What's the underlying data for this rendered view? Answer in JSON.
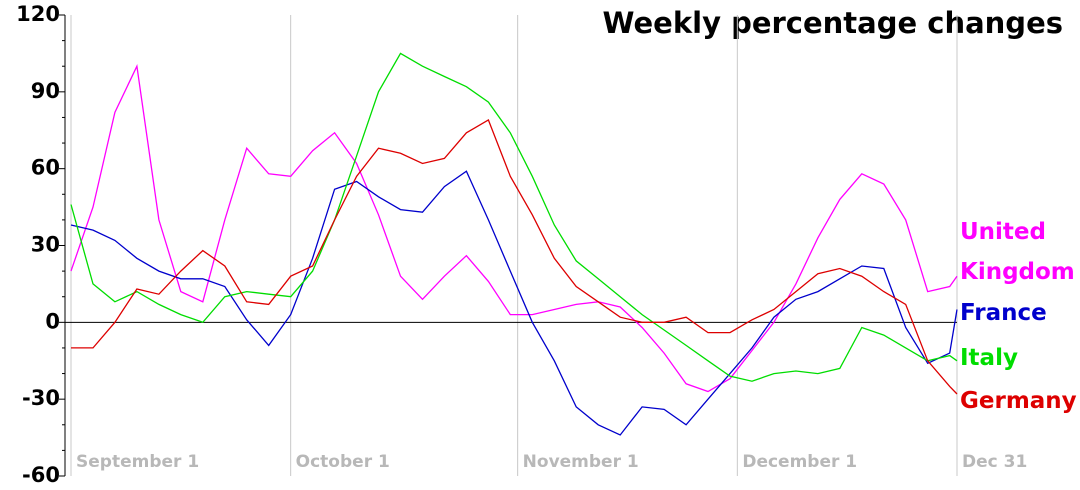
{
  "chart_data": {
    "type": "line",
    "title": "Weekly percentage changes",
    "x": [
      "September 1",
      "September 4",
      "September 7",
      "September 10",
      "September 13",
      "September 16",
      "September 19",
      "September 22",
      "September 25",
      "September 28",
      "October 1",
      "October 4",
      "October 7",
      "October 10",
      "October 13",
      "October 16",
      "October 19",
      "October 22",
      "October 25",
      "October 28",
      "October 31",
      "November 3",
      "November 6",
      "November 9",
      "November 12",
      "November 15",
      "November 18",
      "November 21",
      "November 24",
      "November 27",
      "November 30",
      "December 3",
      "December 6",
      "December 9",
      "December 12",
      "December 15",
      "December 18",
      "December 21",
      "December 24",
      "December 27",
      "December 30",
      "December 31"
    ],
    "series": [
      {
        "name": "United Kingdom",
        "color": "#ff00ff",
        "values": [
          20,
          45,
          82,
          100,
          40,
          12,
          8,
          40,
          68,
          58,
          57,
          67,
          74,
          62,
          42,
          18,
          9,
          18,
          26,
          16,
          3,
          3,
          5,
          7,
          8,
          6,
          -2,
          -12,
          -24,
          -27,
          -22,
          -11,
          0,
          15,
          33,
          48,
          58,
          54,
          40,
          12,
          14,
          18
        ]
      },
      {
        "name": "France",
        "color": "#0000cc",
        "values": [
          38,
          36,
          32,
          25,
          20,
          17,
          17,
          14,
          1,
          -9,
          3,
          25,
          52,
          55,
          49,
          44,
          43,
          53,
          59,
          40,
          20,
          0,
          -15,
          -33,
          -40,
          -44,
          -33,
          -34,
          -40,
          -30,
          -20,
          -10,
          2,
          9,
          12,
          17,
          22,
          21,
          -2,
          -16,
          -12,
          5
        ]
      },
      {
        "name": "Italy",
        "color": "#00dd00",
        "values": [
          46,
          15,
          8,
          12,
          7,
          3,
          0,
          10,
          12,
          11,
          10,
          20,
          40,
          65,
          90,
          105,
          100,
          96,
          92,
          86,
          74,
          57,
          38,
          24,
          17,
          10,
          3,
          -3,
          -9,
          -15,
          -21,
          -23,
          -20,
          -19,
          -20,
          -18,
          -2,
          -5,
          -10,
          -15,
          -13,
          -15
        ]
      },
      {
        "name": "Germany",
        "color": "#dd0000",
        "values": [
          -10,
          -10,
          0,
          13,
          11,
          20,
          28,
          22,
          8,
          7,
          18,
          22,
          40,
          57,
          68,
          66,
          62,
          64,
          74,
          79,
          57,
          42,
          25,
          14,
          8,
          2,
          0,
          0,
          2,
          -4,
          -4,
          1,
          5,
          12,
          19,
          21,
          18,
          12,
          7,
          -15,
          -25,
          -28
        ]
      }
    ],
    "ylim": [
      -60,
      120
    ],
    "yticks": [
      -60,
      -30,
      0,
      30,
      60,
      90,
      120
    ],
    "xticks": [
      "September 1",
      "October 1",
      "November 1",
      "December 1",
      {
        "value": "December 31",
        "label": "Dec 31"
      }
    ]
  }
}
